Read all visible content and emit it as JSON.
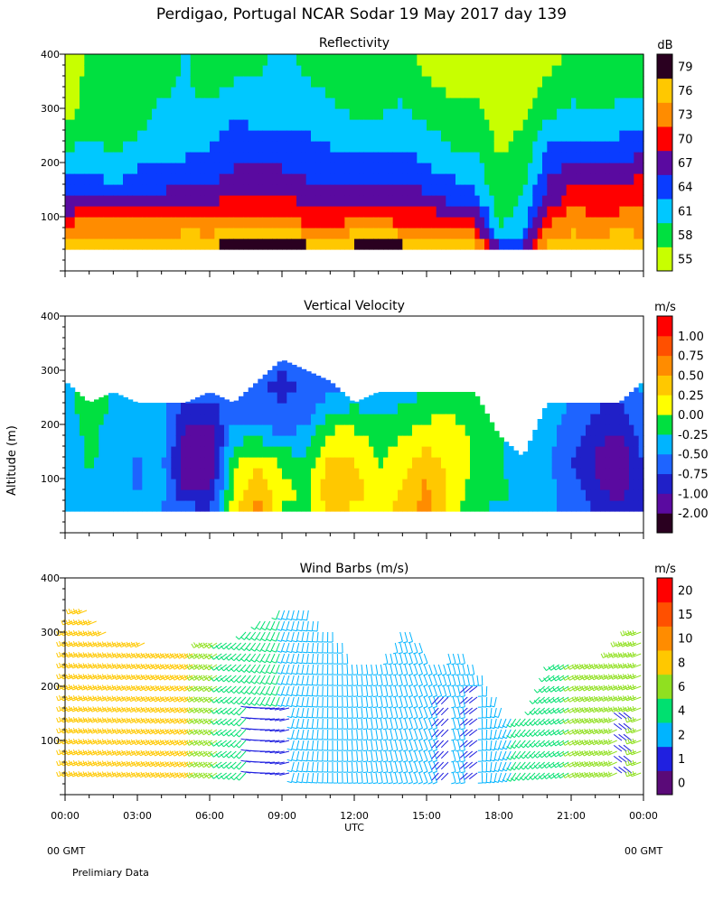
{
  "title": "Perdigao, Portugal  NCAR Sodar  19 May 2017  day 139",
  "x_axis": {
    "range_hours": [
      0,
      24
    ],
    "ticks": [
      {
        "hour": 0,
        "label": "00:00"
      },
      {
        "hour": 3,
        "label": "03:00"
      },
      {
        "hour": 6,
        "label": "06:00"
      },
      {
        "hour": 9,
        "label": "09:00"
      },
      {
        "hour": 12,
        "label": "12:00"
      },
      {
        "hour": 15,
        "label": "15:00"
      },
      {
        "hour": 18,
        "label": "18:00"
      },
      {
        "hour": 21,
        "label": "21:00"
      },
      {
        "hour": 24,
        "label": "00:00"
      }
    ],
    "label": "UTC",
    "gmt_left": "00 GMT",
    "gmt_right": "00 GMT"
  },
  "y_axis_label": "Altitude (m)",
  "footer": "Prelimiary Data",
  "chart_data": [
    {
      "type": "heatmap",
      "id": "reflectivity",
      "title": "Reflectivity",
      "units": "dB",
      "ylim": [
        0,
        400
      ],
      "yticks": [
        {
          "value": 100,
          "label": "100"
        },
        {
          "value": 200,
          "label": "200"
        },
        {
          "value": 300,
          "label": "300"
        },
        {
          "value": 400,
          "label": "400"
        }
      ],
      "colorbar": {
        "colors": [
          "#c8ff00",
          "#00e040",
          "#00c8ff",
          "#0a3cff",
          "#5a0aa0",
          "#ff0000",
          "#ff8c00",
          "#ffc800",
          "#2a0020"
        ],
        "labels": [
          "55",
          "58",
          "61",
          "64",
          "67",
          "70",
          "73",
          "76",
          "79"
        ]
      },
      "x_hours": [
        0,
        1,
        2,
        3,
        4,
        5,
        6,
        7,
        8,
        9,
        10,
        11,
        12,
        13,
        14,
        15,
        16,
        17,
        18,
        19,
        20,
        21,
        22,
        23,
        24
      ],
      "altitude_m": [
        40,
        60,
        80,
        100,
        120,
        140,
        160,
        180,
        200,
        220,
        240,
        260,
        280,
        300,
        320,
        340,
        360,
        380,
        400
      ],
      "top_m": [
        400,
        400,
        400,
        400,
        400,
        400,
        400,
        400,
        400,
        400,
        400,
        400,
        400,
        400,
        400,
        400,
        400,
        400,
        400,
        400,
        400,
        400,
        400,
        400,
        400
      ],
      "anchor_m": [
        40,
        60,
        90,
        130,
        180,
        240,
        300,
        380
      ],
      "profiles_db": [
        [
          76,
          74,
          70,
          66,
          63,
          58,
          55,
          55
        ],
        [
          78,
          75,
          73,
          66,
          63,
          60,
          58,
          57
        ],
        [
          78,
          75,
          72,
          66,
          61,
          58,
          57,
          57
        ],
        [
          79,
          75,
          72,
          66,
          63,
          60,
          58,
          57
        ],
        [
          78,
          75,
          72,
          67,
          63,
          61,
          60,
          58
        ],
        [
          79,
          76,
          72,
          67,
          64,
          61,
          60,
          60
        ],
        [
          79,
          75,
          73,
          67,
          64,
          62,
          60,
          57
        ],
        [
          79,
          77,
          72,
          70,
          66,
          64,
          62,
          58
        ],
        [
          79,
          76,
          72,
          69,
          66,
          63,
          61,
          59
        ],
        [
          79,
          76,
          73,
          70,
          66,
          63,
          61,
          60
        ],
        [
          79,
          76,
          71,
          67,
          65,
          63,
          61,
          59
        ],
        [
          79,
          75,
          71,
          67,
          65,
          62,
          60,
          58
        ],
        [
          79,
          76,
          72,
          68,
          64,
          61,
          59,
          58
        ],
        [
          79,
          77,
          72,
          67,
          64,
          61,
          59,
          58
        ],
        [
          79,
          76,
          71,
          67,
          64,
          62,
          60,
          57
        ],
        [
          79,
          75,
          71,
          67,
          63,
          61,
          58,
          56
        ],
        [
          78,
          74,
          70,
          65,
          62,
          59,
          57,
          55
        ],
        [
          77,
          73,
          69,
          64,
          61,
          59,
          57,
          55
        ],
        [
          67,
          62,
          59,
          58,
          57,
          56,
          55,
          55
        ],
        [
          68,
          63,
          61,
          60,
          58,
          57,
          56,
          55
        ],
        [
          76,
          74,
          71,
          67,
          65,
          62,
          58,
          56
        ],
        [
          77,
          75,
          74,
          70,
          67,
          63,
          60,
          57
        ],
        [
          78,
          75,
          72,
          70,
          67,
          63,
          59,
          57
        ],
        [
          79,
          76,
          73,
          70,
          67,
          63,
          60,
          58
        ],
        [
          78,
          75,
          72,
          71,
          69,
          63,
          60,
          57
        ]
      ]
    },
    {
      "type": "heatmap",
      "id": "vertical-velocity",
      "title": "Vertical Velocity",
      "units": "m/s",
      "ylim": [
        0,
        400
      ],
      "yticks": [
        {
          "value": 100,
          "label": "100"
        },
        {
          "value": 200,
          "label": "200"
        },
        {
          "value": 300,
          "label": "300"
        },
        {
          "value": 400,
          "label": "400"
        }
      ],
      "colorbar": {
        "colors": [
          "#2a0020",
          "#5a0aa0",
          "#2020c8",
          "#1e64ff",
          "#00b4ff",
          "#00e040",
          "#ffff00",
          "#ffc800",
          "#ff8c00",
          "#ff5000",
          "#ff0000"
        ],
        "labels": [
          "-2.00",
          "-1.00",
          "-0.75",
          "-0.50",
          "-0.25",
          "0.00",
          "0.25",
          "0.50",
          "0.75",
          "1.00"
        ]
      },
      "x_hours": [
        0,
        1,
        2,
        3,
        4,
        5,
        6,
        7,
        8,
        9,
        10,
        11,
        12,
        13,
        14,
        15,
        16,
        17,
        18,
        19,
        20,
        21,
        22,
        23,
        24
      ],
      "altitude_m": [
        40,
        60,
        80,
        100,
        120,
        140,
        160,
        180,
        200,
        220,
        240,
        260,
        280,
        300,
        320,
        340
      ],
      "top_m": [
        280,
        240,
        260,
        240,
        240,
        240,
        260,
        240,
        280,
        320,
        300,
        280,
        240,
        260,
        260,
        260,
        260,
        260,
        180,
        140,
        240,
        240,
        240,
        240,
        280
      ],
      "anchor_m": [
        40,
        80,
        130,
        180,
        230,
        280,
        320
      ],
      "profiles_ms": [
        [
          -0.4,
          -0.3,
          -0.3,
          -0.4,
          -0.3,
          -0.2,
          -0.3
        ],
        [
          -0.3,
          -0.2,
          -0.1,
          0.0,
          0.1,
          0.0,
          -0.2
        ],
        [
          -0.3,
          -0.3,
          -0.2,
          -0.3,
          -0.2,
          -0.2,
          -0.2
        ],
        [
          -0.3,
          -0.4,
          -0.4,
          -0.3,
          -0.3,
          -0.2,
          -0.2
        ],
        [
          -0.4,
          -0.3,
          -0.3,
          -0.3,
          -0.3,
          -0.3,
          -0.2
        ],
        [
          -0.5,
          -0.9,
          -1.1,
          -0.9,
          -0.7,
          -0.5,
          -0.4
        ],
        [
          -0.6,
          -0.9,
          -1.2,
          -1.1,
          -0.7,
          -0.5,
          -0.4
        ],
        [
          0.3,
          0.2,
          0.1,
          -0.2,
          -0.5,
          -0.5,
          -0.4
        ],
        [
          0.8,
          0.6,
          0.3,
          -0.2,
          -0.5,
          -0.6,
          -0.4
        ],
        [
          0.1,
          0.2,
          0.1,
          -0.4,
          -0.6,
          -0.7,
          -0.5
        ],
        [
          0.0,
          0.1,
          -0.1,
          -0.3,
          -0.5,
          -0.6,
          -0.4
        ],
        [
          0.5,
          0.6,
          0.5,
          0.2,
          -0.2,
          -0.5,
          -0.4
        ],
        [
          0.3,
          0.5,
          0.4,
          0.2,
          -0.1,
          -0.3,
          -0.2
        ],
        [
          0.2,
          0.2,
          0.1,
          0.0,
          -0.2,
          -0.3,
          -0.3
        ],
        [
          0.5,
          0.4,
          0.3,
          0.1,
          -0.1,
          -0.3,
          -0.3
        ],
        [
          0.7,
          0.7,
          0.5,
          0.3,
          0.0,
          -0.2,
          -0.2
        ],
        [
          0.3,
          0.3,
          0.3,
          0.2,
          0.1,
          0.0,
          0.0
        ],
        [
          -0.1,
          0.0,
          0.1,
          0.1,
          0.0,
          -0.1,
          -0.1
        ],
        [
          -0.2,
          0.0,
          -0.1,
          -0.1,
          -0.2,
          -0.2,
          -0.2
        ],
        [
          -0.2,
          -0.3,
          -0.3,
          -0.3,
          -0.3,
          -0.3,
          -0.3
        ],
        [
          -0.3,
          -0.3,
          -0.3,
          -0.3,
          -0.3,
          -0.3,
          -0.3
        ],
        [
          -0.5,
          -0.5,
          -0.6,
          -0.5,
          -0.4,
          -0.3,
          -0.3
        ],
        [
          -0.6,
          -0.8,
          -0.9,
          -0.8,
          -0.6,
          -0.5,
          -0.4
        ],
        [
          -0.8,
          -1.0,
          -1.1,
          -0.9,
          -0.7,
          -0.5,
          -0.5
        ],
        [
          -0.6,
          -0.7,
          -0.6,
          -0.5,
          -0.4,
          -0.3,
          -0.3
        ]
      ]
    },
    {
      "type": "barbs",
      "id": "wind-barbs",
      "title": "Wind Barbs (m/s)",
      "units": "m/s",
      "ylim": [
        0,
        400
      ],
      "yticks": [
        {
          "value": 100,
          "label": "100"
        },
        {
          "value": 200,
          "label": "200"
        },
        {
          "value": 300,
          "label": "300"
        },
        {
          "value": 400,
          "label": "400"
        }
      ],
      "colorbar": {
        "colors": [
          "#5a0a78",
          "#2020e0",
          "#00b4ff",
          "#00e070",
          "#90e020",
          "#ffc800",
          "#ff8c00",
          "#ff5000",
          "#ff0000"
        ],
        "labels": [
          "0",
          "1",
          "2",
          "4",
          "6",
          "8",
          "10",
          "15",
          "20"
        ]
      },
      "time_step_hours": 0.2,
      "altitude_step_m": 20,
      "bottom_m": 40,
      "top_hours": [
        0,
        0.6,
        2,
        3.4,
        5,
        6,
        7,
        8,
        8.9,
        10.1,
        11.2,
        12.2,
        13.2,
        14.2,
        15.2,
        16.2,
        17.2,
        18.2,
        19.2,
        20.2,
        21.5,
        22.5,
        23.3,
        24
      ],
      "top_m": [
        300,
        360,
        290,
        280,
        260,
        290,
        280,
        320,
        340,
        340,
        300,
        240,
        260,
        320,
        240,
        280,
        230,
        160,
        140,
        240,
        240,
        260,
        300,
        300
      ],
      "speed_hours": [
        0,
        3,
        5.5,
        6.5,
        7.5,
        9,
        10.5,
        12,
        13.5,
        15,
        16.5,
        18,
        19.5,
        21,
        22.5,
        24
      ],
      "speed_ms": [
        7,
        7,
        7,
        5,
        3.5,
        3,
        2.5,
        2.2,
        2.2,
        2.2,
        2.5,
        2.6,
        3.5,
        5,
        6,
        6
      ],
      "direction_hours": [
        0,
        6,
        7,
        9,
        11,
        13,
        15,
        17,
        19,
        21,
        24
      ],
      "direction_deg": [
        250,
        240,
        230,
        200,
        180,
        170,
        160,
        170,
        220,
        240,
        250
      ],
      "calm_patches": [
        {
          "hours": [
            7.7,
            9.3
          ],
          "altitude_m": [
            40,
            160
          ],
          "speed_ms": 0.7
        },
        {
          "hours": [
            15.3,
            16.0
          ],
          "altitude_m": [
            40,
            180
          ],
          "speed_ms": 0.8
        },
        {
          "hours": [
            16.6,
            17.1
          ],
          "altitude_m": [
            40,
            200
          ],
          "speed_ms": 0.7
        },
        {
          "hours": [
            23.0,
            23.6
          ],
          "altitude_m": [
            40,
            140
          ],
          "speed_ms": 0.6
        }
      ]
    }
  ]
}
